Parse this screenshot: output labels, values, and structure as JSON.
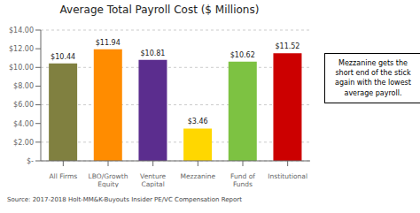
{
  "chart_data": {
    "type": "bar",
    "title": "Average Total Payroll Cost ($ Millions)",
    "categories": [
      "All Firms",
      "LBO/Growth\nEquity",
      "Venture Capital",
      "Mezzanine",
      "Fund of Funds",
      "Institutional"
    ],
    "values": [
      10.44,
      11.94,
      10.81,
      3.46,
      10.62,
      11.52
    ],
    "value_labels": [
      "$10.44",
      "$11.94",
      "$10.81",
      "$3.46",
      "$10.62",
      "$11.52"
    ],
    "colors": [
      "#808040",
      "#FF8C00",
      "#5B2D8E",
      "#FFD700",
      "#7DC242",
      "#CC0000"
    ],
    "ylim": [
      0,
      14
    ],
    "yticks": [
      {
        "value": 0,
        "label": "$-"
      },
      {
        "value": 2,
        "label": "$2.00"
      },
      {
        "value": 4,
        "label": "$4.00"
      },
      {
        "value": 6,
        "label": "$6.00"
      },
      {
        "value": 8,
        "label": "$8.00"
      },
      {
        "value": 10,
        "label": "$10.00"
      },
      {
        "value": 12,
        "label": "$12.00"
      },
      {
        "value": 14,
        "label": "$14.00"
      }
    ],
    "grid": true,
    "data_labels": true,
    "annotation": "Mezzanine gets the\nshort end of the stick\nagain with the lowest\naverage payroll.",
    "source": "Source: 2017-2018 Holt-MM&K-Buyouts Insider PE/VC Compensation Report"
  }
}
